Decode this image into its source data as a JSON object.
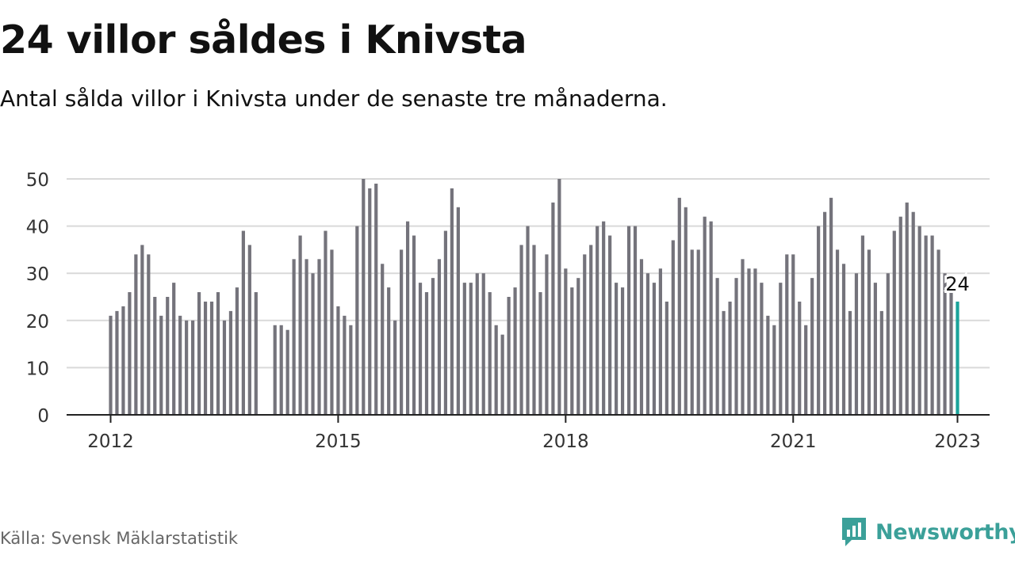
{
  "header": {
    "title": "24 villor såldes i Knivsta",
    "subtitle": "Antal sålda villor i Knivsta under de senaste tre månaderna."
  },
  "footer": {
    "source": "Källa: Svensk Mäklarstatistik",
    "brand": "Newsworthy"
  },
  "colors": {
    "bar": "#74737b",
    "highlight": "#1aa39a",
    "grid": "#d9d9d9",
    "axis": "#222222",
    "brand": "#3ba099"
  },
  "chart_data": {
    "type": "bar",
    "title": "24 villor såldes i Knivsta",
    "subtitle": "Antal sålda villor i Knivsta under de senaste tre månaderna.",
    "xlabel": "",
    "ylabel": "",
    "ylim": [
      0,
      50
    ],
    "yticks": [
      0,
      10,
      20,
      30,
      40,
      50
    ],
    "xticks": [
      "2012",
      "2015",
      "2018",
      "2021",
      "2023"
    ],
    "grid": true,
    "start_month": "2012-01",
    "values": [
      21,
      22,
      23,
      26,
      34,
      36,
      34,
      25,
      21,
      25,
      28,
      21,
      20,
      20,
      26,
      24,
      24,
      26,
      20,
      22,
      27,
      39,
      36,
      26,
      null,
      null,
      19,
      19,
      18,
      33,
      38,
      33,
      30,
      33,
      39,
      35,
      23,
      21,
      19,
      40,
      50,
      48,
      49,
      32,
      27,
      20,
      35,
      41,
      38,
      28,
      26,
      29,
      33,
      39,
      48,
      44,
      28,
      28,
      30,
      30,
      26,
      19,
      17,
      25,
      27,
      36,
      40,
      36,
      26,
      34,
      45,
      50,
      31,
      27,
      29,
      34,
      36,
      40,
      41,
      38,
      28,
      27,
      40,
      40,
      33,
      30,
      28,
      31,
      24,
      37,
      46,
      44,
      35,
      35,
      42,
      41,
      29,
      22,
      24,
      29,
      33,
      31,
      31,
      28,
      21,
      19,
      28,
      34,
      34,
      24,
      19,
      29,
      40,
      43,
      46,
      35,
      32,
      22,
      30,
      38,
      35,
      28,
      22,
      30,
      39,
      42,
      45,
      43,
      40,
      38,
      38,
      35,
      30,
      26,
      24
    ],
    "highlight_label": "24"
  }
}
